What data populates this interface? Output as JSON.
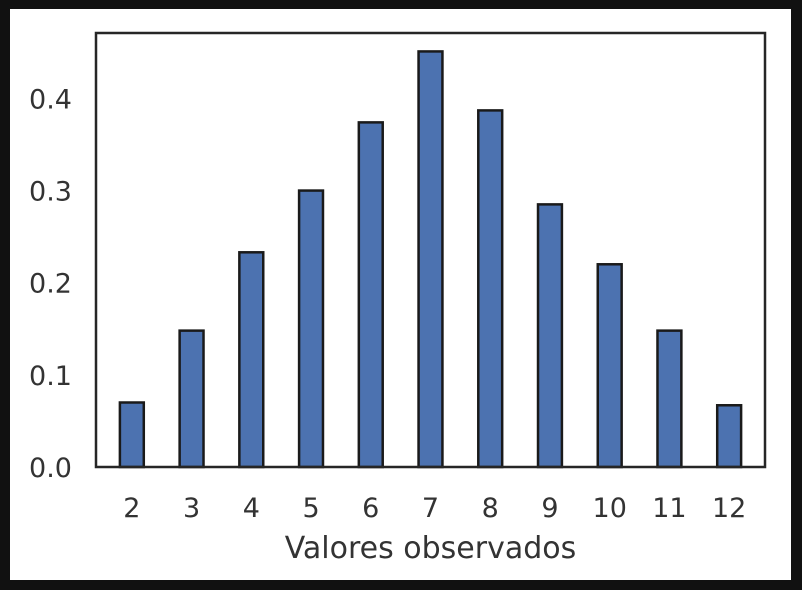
{
  "chart_data": {
    "type": "bar",
    "title": "",
    "xlabel": "Valores observados",
    "ylabel": "",
    "x": [
      2,
      3,
      4,
      5,
      6,
      7,
      8,
      9,
      10,
      11,
      12
    ],
    "values": [
      0.07,
      0.148,
      0.233,
      0.3,
      0.374,
      0.451,
      0.387,
      0.285,
      0.22,
      0.148,
      0.067
    ],
    "xlim": [
      1.4,
      12.6
    ],
    "ylim": [
      0,
      0.471
    ],
    "yticks": [
      0.0,
      0.1,
      0.2,
      0.3,
      0.4
    ],
    "ytick_labels": [
      "0.0",
      "0.1",
      "0.2",
      "0.3",
      "0.4"
    ],
    "xtick_labels": [
      "2",
      "3",
      "4",
      "5",
      "6",
      "7",
      "8",
      "9",
      "10",
      "11",
      "12"
    ],
    "grid": false,
    "bar_color": "#4c72b0",
    "edge_color": "#1a1a1a",
    "axis_color": "#262626",
    "text_color": "#333333"
  }
}
